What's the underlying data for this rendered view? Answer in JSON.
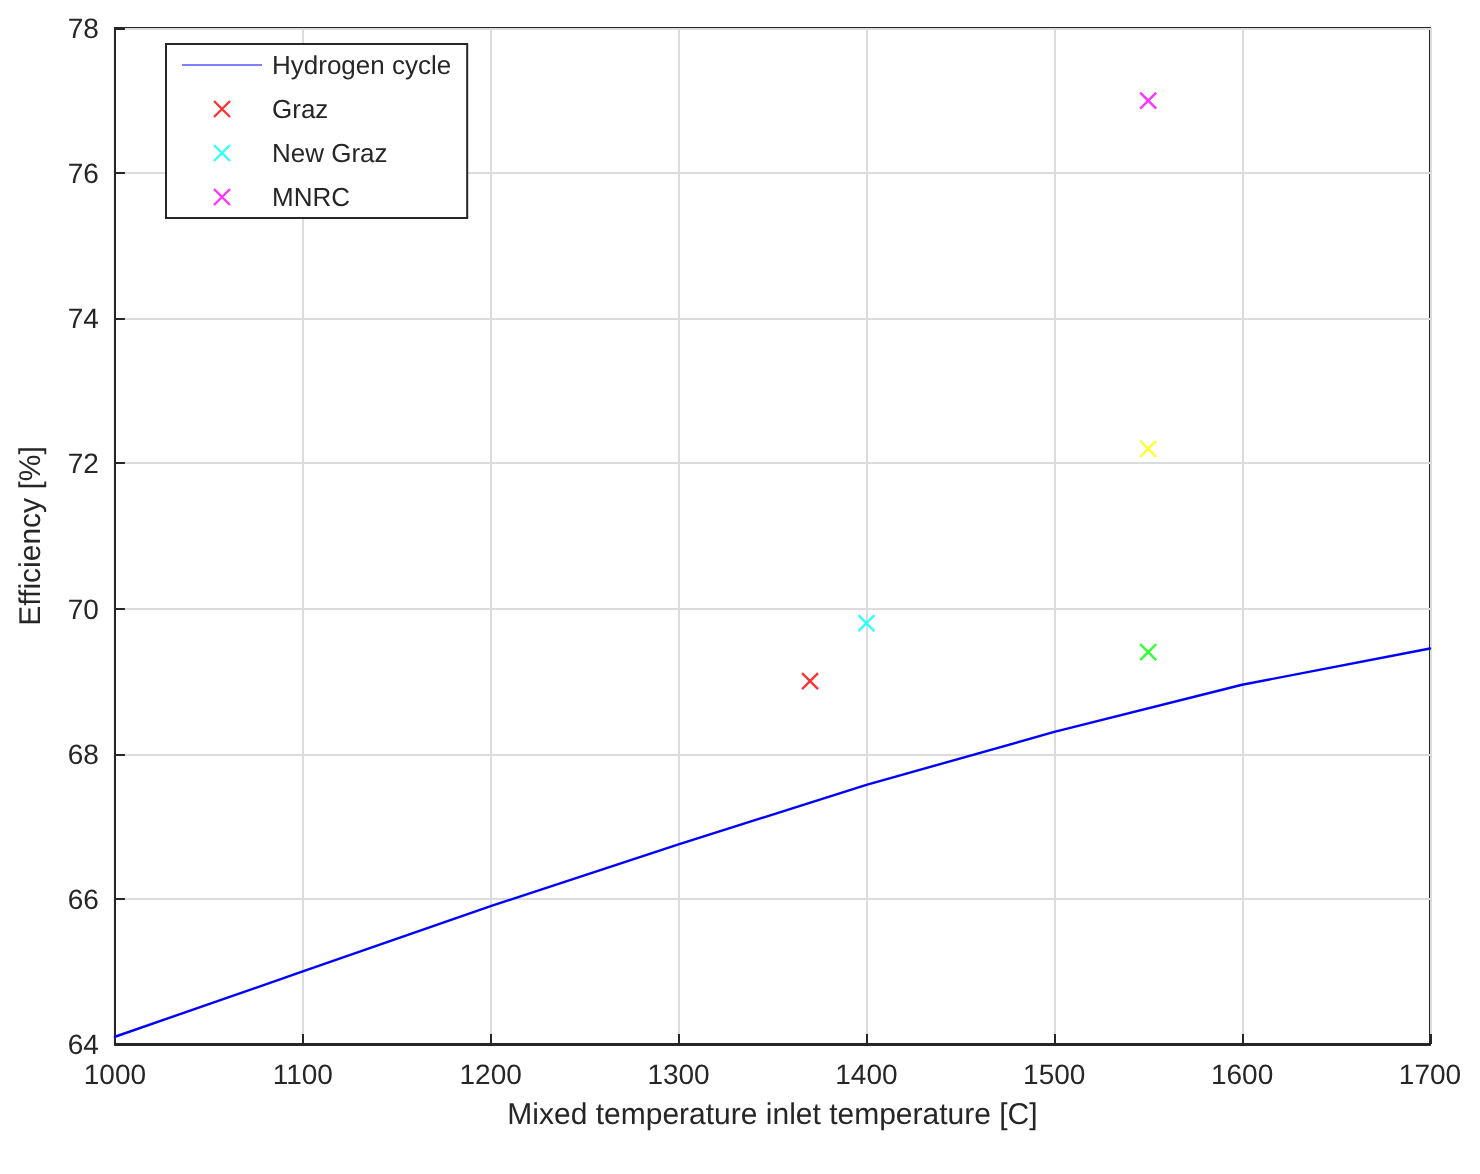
{
  "chart_data": {
    "type": "line",
    "xlabel": "Mixed temperature inlet temperature [C]",
    "ylabel": "Efficiency [%]",
    "xlim": [
      1000,
      1700
    ],
    "xticks": [
      1000,
      1100,
      1200,
      1300,
      1400,
      1500,
      1600,
      1700
    ],
    "ylim": [
      64,
      78
    ],
    "yticks": [
      64,
      66,
      68,
      70,
      72,
      74,
      76,
      78
    ],
    "grid": true,
    "legend": "top left",
    "series": [
      {
        "name": "Hydrogen cycle",
        "color": "#0000ff",
        "marker": "none",
        "line_style": "solid",
        "x": [
          1000,
          1100,
          1200,
          1300,
          1400,
          1500,
          1600,
          1700
        ],
        "values": [
          64.1,
          65.0,
          65.9,
          66.75,
          67.57,
          68.3,
          68.95,
          69.45
        ]
      },
      {
        "name": "Graz",
        "type": "scatter",
        "color": "#ff0000",
        "marker": "cross",
        "x": [
          1370
        ],
        "values": [
          69.0
        ]
      },
      {
        "name": "New Graz",
        "type": "scatter",
        "color": "#00ffff",
        "marker": "cross",
        "x": [
          1400
        ],
        "values": [
          69.8
        ]
      },
      {
        "type": "scatter",
        "color": "#00ff00",
        "marker": "cross",
        "x": [
          1550
        ],
        "values": [
          69.4
        ]
      },
      {
        "type": "scatter",
        "color": "#ffff00",
        "marker": "cross",
        "x": [
          1550
        ],
        "values": [
          72.2
        ]
      },
      {
        "name": "MNRC",
        "type": "scatter",
        "color": "#ff00ff",
        "marker": "cross",
        "x": [
          1550
        ],
        "values": [
          77.0
        ]
      }
    ]
  }
}
